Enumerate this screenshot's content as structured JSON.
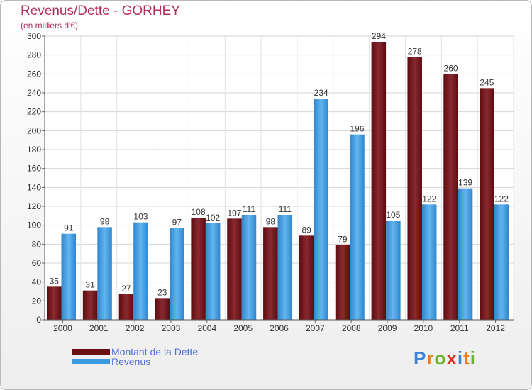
{
  "header": {
    "title": "Revenus/Dette - GORHEY",
    "subtitle": "(en milliers d'€)"
  },
  "chart_data": {
    "type": "bar",
    "title": "Revenus/Dette - GORHEY",
    "subtitle": "(en milliers d'€)",
    "categories": [
      "2000",
      "2001",
      "2002",
      "2003",
      "2004",
      "2005",
      "2006",
      "2007",
      "2008",
      "2009",
      "2010",
      "2011",
      "2012"
    ],
    "series": [
      {
        "name": "Montant de la Dette",
        "color": "#7a1e24",
        "values": [
          35,
          31,
          27,
          23,
          108,
          107,
          98,
          89,
          79,
          294,
          278,
          260,
          245
        ]
      },
      {
        "name": "Revenus",
        "color": "#4aa3e3",
        "values": [
          91,
          98,
          103,
          97,
          102,
          111,
          111,
          234,
          196,
          105,
          122,
          139,
          122
        ]
      }
    ],
    "ylim": [
      0,
      300
    ],
    "yticks": [
      0,
      20,
      40,
      60,
      80,
      100,
      120,
      140,
      160,
      180,
      200,
      220,
      240,
      260,
      280,
      300
    ],
    "grid": true,
    "legend_position": "bottom-left"
  },
  "legend": {
    "items": [
      {
        "label": "Montant de la Dette",
        "color": "#6b0f14"
      },
      {
        "label": "Revenus",
        "color": "#3b9ae0"
      }
    ]
  },
  "logo": {
    "letters": [
      "P",
      "r",
      "o",
      "x",
      "i",
      "t",
      "i"
    ],
    "colors": [
      "#3c84d6",
      "#f07a1a",
      "#6bb52e",
      "#e0301e",
      "#3c84d6",
      "#f07a1a",
      "#6bb52e"
    ]
  }
}
